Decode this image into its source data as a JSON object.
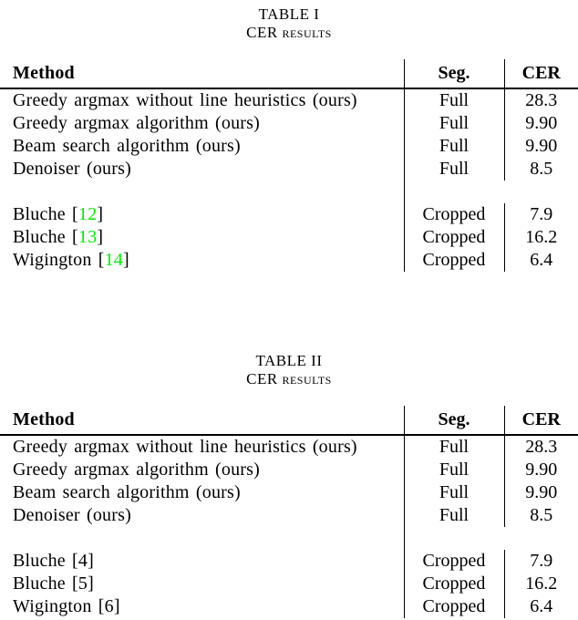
{
  "page": {
    "background": "#FFFFFF",
    "text_color": "#000000"
  },
  "colors": {
    "citation_link_green": "#00EE00",
    "citation_plain_black": "#000000",
    "rule_color": "#000000"
  },
  "tables": [
    {
      "caption_label": "TABLE I",
      "title_prefix": "CER",
      "title_smallcaps": "results",
      "columns": [
        "Method",
        "Seg.",
        "CER"
      ],
      "citation_color": "#00EE00",
      "rows": [
        {
          "method_prefix": "Greedy argmax without line heuristics (ours)",
          "citation": "",
          "method_suffix": "",
          "seg": "Full",
          "cer": "28.3"
        },
        {
          "method_prefix": "Greedy argmax algorithm (ours)",
          "citation": "",
          "method_suffix": "",
          "seg": "Full",
          "cer": "9.90"
        },
        {
          "method_prefix": "Beam search algorithm (ours)",
          "citation": "",
          "method_suffix": "",
          "seg": "Full",
          "cer": "9.90"
        },
        {
          "method_prefix": "Denoiser (ours)",
          "citation": "",
          "method_suffix": "",
          "seg": "Full",
          "cer": "8.5"
        },
        {
          "method_prefix": "Bluche [",
          "citation": "12",
          "method_suffix": "]",
          "seg": "Cropped",
          "cer": "7.9"
        },
        {
          "method_prefix": "Bluche [",
          "citation": "13",
          "method_suffix": "]",
          "seg": "Cropped",
          "cer": "16.2"
        },
        {
          "method_prefix": "Wigington [",
          "citation": "14",
          "method_suffix": "]",
          "seg": "Cropped",
          "cer": "6.4"
        }
      ]
    },
    {
      "caption_label": "TABLE II",
      "title_prefix": "CER",
      "title_smallcaps": "results",
      "columns": [
        "Method",
        "Seg.",
        "CER"
      ],
      "citation_color": "#000000",
      "rows": [
        {
          "method_prefix": "Greedy argmax without line heuristics (ours)",
          "citation": "",
          "method_suffix": "",
          "seg": "Full",
          "cer": "28.3"
        },
        {
          "method_prefix": "Greedy argmax algorithm (ours)",
          "citation": "",
          "method_suffix": "",
          "seg": "Full",
          "cer": "9.90"
        },
        {
          "method_prefix": "Beam search algorithm (ours)",
          "citation": "",
          "method_suffix": "",
          "seg": "Full",
          "cer": "9.90"
        },
        {
          "method_prefix": "Denoiser (ours)",
          "citation": "",
          "method_suffix": "",
          "seg": "Full",
          "cer": "8.5"
        },
        {
          "method_prefix": "Bluche [",
          "citation": "4",
          "method_suffix": "]",
          "seg": "Cropped",
          "cer": "7.9"
        },
        {
          "method_prefix": "Bluche [",
          "citation": "5",
          "method_suffix": "]",
          "seg": "Cropped",
          "cer": "16.2"
        },
        {
          "method_prefix": "Wigington [",
          "citation": "6",
          "method_suffix": "]",
          "seg": "Cropped",
          "cer": "6.4"
        }
      ]
    }
  ]
}
